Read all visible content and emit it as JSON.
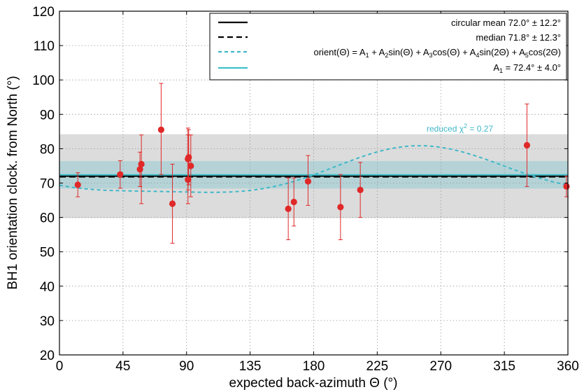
{
  "chart_data": {
    "type": "scatter",
    "xlabel": "expected back-azimuth Θ (°)",
    "ylabel": "BH1 orientation clock. from North (°)",
    "xlim": [
      0,
      360
    ],
    "ylim": [
      20,
      120
    ],
    "xticks": [
      0,
      45,
      90,
      135,
      180,
      225,
      270,
      315,
      360
    ],
    "yticks": [
      20,
      30,
      40,
      50,
      60,
      70,
      80,
      90,
      100,
      110,
      120
    ],
    "grid": true,
    "legend_position": "top-right",
    "colors": {
      "points": "#e02828",
      "errorbars": "#e02828",
      "mean": "#000000",
      "median": "#000000",
      "fit": "#3fb8c8",
      "a1": "#3fc0cc",
      "band_outer": "#dcdcdc",
      "band_inner": "#b5d3d7"
    },
    "points": [
      {
        "x": 13,
        "y": 69.5,
        "err_low": 3.5,
        "err_high": 3.5
      },
      {
        "x": 43,
        "y": 72.5,
        "err_low": 4,
        "err_high": 4
      },
      {
        "x": 57,
        "y": 74,
        "err_low": 5,
        "err_high": 5
      },
      {
        "x": 58,
        "y": 75.5,
        "err_low": 11.5,
        "err_high": 8.5
      },
      {
        "x": 72,
        "y": 85.5,
        "err_low": 13,
        "err_high": 13.5
      },
      {
        "x": 80,
        "y": 64,
        "err_low": 11.5,
        "err_high": 11.5
      },
      {
        "x": 91,
        "y": 71,
        "err_low": 7,
        "err_high": 13
      },
      {
        "x": 91,
        "y": 77,
        "err_low": 9,
        "err_high": 9
      },
      {
        "x": 91.5,
        "y": 77.5,
        "err_low": 8,
        "err_high": 8
      },
      {
        "x": 93,
        "y": 75,
        "err_low": 9,
        "err_high": 9
      },
      {
        "x": 162,
        "y": 62.5,
        "err_low": 9,
        "err_high": 9
      },
      {
        "x": 166,
        "y": 64.5,
        "err_low": 7,
        "err_high": 7
      },
      {
        "x": 176,
        "y": 70.5,
        "err_low": 7,
        "err_high": 7.5
      },
      {
        "x": 199,
        "y": 63,
        "err_low": 9.5,
        "err_high": 9.5
      },
      {
        "x": 213,
        "y": 68,
        "err_low": 8,
        "err_high": 8
      },
      {
        "x": 331,
        "y": 81,
        "err_low": 12,
        "err_high": 12
      },
      {
        "x": 359,
        "y": 69,
        "err_low": 3,
        "err_high": 3
      }
    ],
    "circular_mean": {
      "value": 72.0,
      "err": 12.2
    },
    "median": {
      "value": 71.8,
      "err": 12.3
    },
    "a1": {
      "value": 72.4,
      "err": 4.0
    },
    "fit_coefficients": {
      "A1": 72.4,
      "A2": -6.5,
      "A3": -1.5,
      "A4": 1.0,
      "A5": -1.5
    },
    "legend": [
      {
        "style": "solid-black",
        "label": "circular mean  72.0° ± 12.2°"
      },
      {
        "style": "dashed-black",
        "label": "median  71.8° ± 12.3°"
      },
      {
        "style": "dashed-cyan",
        "label": "fit-formula"
      },
      {
        "style": "solid-cyan",
        "label": "a1"
      }
    ],
    "legend_labels": {
      "mean": "circular mean  72.0° ± 12.2°",
      "median": "median  71.8° ± 12.3°",
      "fit_parts": [
        "orient(Θ) = A",
        "1",
        " + A",
        "2",
        "sin(Θ) + A",
        "3",
        "cos(Θ) + A",
        "4",
        "sin(2Θ) + A",
        "5",
        "cos(2Θ)"
      ],
      "a1_parts": [
        "A",
        "1",
        " = 72.4° ± 4.0°"
      ]
    },
    "annotation": {
      "parts": [
        "reduced χ",
        "2",
        " = 0.27"
      ]
    }
  }
}
